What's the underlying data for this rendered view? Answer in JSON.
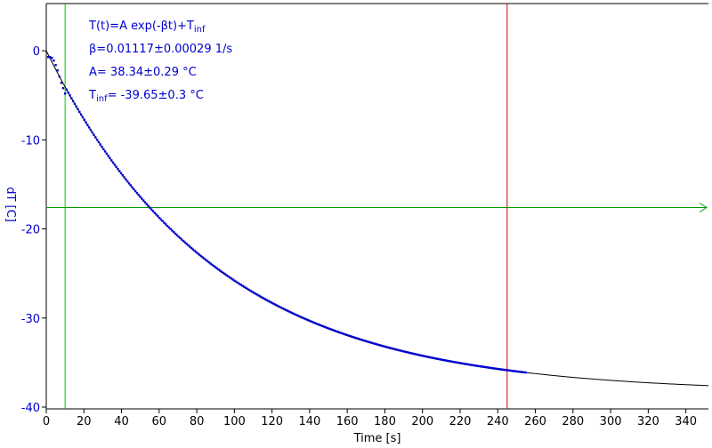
{
  "chart_data": {
    "type": "scatter",
    "xlabel": "Time [s]",
    "ylabel": "dT [C]",
    "xlim": [
      0,
      352
    ],
    "ylim": [
      -40.2,
      5.3
    ],
    "xticks": [
      0,
      20,
      40,
      60,
      80,
      100,
      120,
      140,
      160,
      180,
      200,
      220,
      240,
      260,
      280,
      300,
      320,
      340
    ],
    "yticks": [
      0,
      -10,
      -20,
      -30,
      -40
    ],
    "fit_text": {
      "formula_main": "T(t)=A exp(-βt)+T",
      "formula_sub": "inf",
      "beta": "β=0.01117±0.00029 1/s",
      "amplitude": "A= 38.34±0.29 °C",
      "tinf_main": "T",
      "tinf_sub": "inf",
      "tinf_value": "= -39.65±0.3 °C"
    },
    "fit": {
      "A": 38.34,
      "beta": 0.01117,
      "T_inf": -39.65,
      "offset": 1.31,
      "x_range": [
        0,
        352
      ]
    },
    "data_series": {
      "x_range": [
        0,
        255
      ],
      "step": 0.85,
      "lag_points": [
        [
          1,
          -0.7
        ],
        [
          2,
          -0.7
        ],
        [
          3,
          -0.8
        ],
        [
          4,
          -1.1
        ],
        [
          5,
          -1.6
        ],
        [
          6,
          -2.2
        ],
        [
          7,
          -2.9
        ],
        [
          8,
          -3.6
        ],
        [
          9,
          -4.2
        ],
        [
          10,
          -4.8
        ]
      ]
    },
    "markers": {
      "green_vertical_x": 10,
      "red_vertical_x": 245,
      "green_horizontal_y": -17.6
    },
    "colors": {
      "axis": "#000000",
      "tick_labels_y": "#0000cc",
      "data": "#0000cc",
      "fit_line": "#000000",
      "green_vertical": "#00cc00",
      "red_vertical": "#cc0000",
      "green_horizontal": "#009900",
      "fit_text": "#0000cc"
    }
  }
}
